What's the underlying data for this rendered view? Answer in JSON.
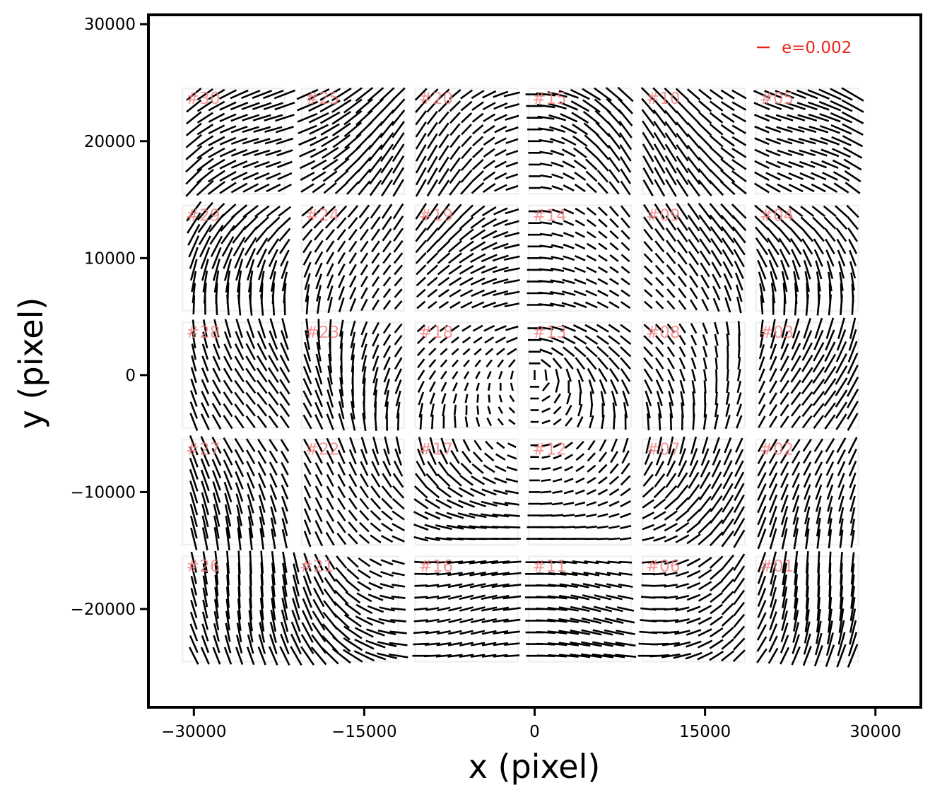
{
  "chart_data": {
    "type": "quiver",
    "title": "",
    "xlabel": "x (pixel)",
    "ylabel": "y (pixel)",
    "xlim": [
      -34000,
      34000
    ],
    "ylim": [
      -28400,
      30800
    ],
    "xticks": [
      -30000,
      -15000,
      0,
      15000,
      30000
    ],
    "xtick_labels": [
      "−30000",
      "−15000",
      "0",
      "15000",
      "30000"
    ],
    "yticks": [
      -20000,
      -10000,
      0,
      10000,
      20000,
      30000
    ],
    "ytick_labels": [
      "−20000",
      "−10000",
      "0",
      "10000",
      "20000",
      "30000"
    ],
    "scale_key": {
      "label": "e=0.002",
      "value": 0.002,
      "color": "#e8281e",
      "position": "top-right"
    },
    "whisker_color": "#000000",
    "ccd_label_color": "#f08080",
    "ccds": [
      {
        "id": "#01",
        "x": 24000,
        "y": -20000
      },
      {
        "id": "#02",
        "x": 24000,
        "y": -10000
      },
      {
        "id": "#03",
        "x": 24000,
        "y": 0
      },
      {
        "id": "#04",
        "x": 24000,
        "y": 10000
      },
      {
        "id": "#05",
        "x": 24000,
        "y": 20000
      },
      {
        "id": "#06",
        "x": 14000,
        "y": -20000
      },
      {
        "id": "#07",
        "x": 14000,
        "y": -10000
      },
      {
        "id": "#08",
        "x": 14000,
        "y": 0
      },
      {
        "id": "#09",
        "x": 14000,
        "y": 10000
      },
      {
        "id": "#10",
        "x": 14000,
        "y": 20000
      },
      {
        "id": "#11",
        "x": 4000,
        "y": -20000
      },
      {
        "id": "#12",
        "x": 4000,
        "y": -10000
      },
      {
        "id": "#13",
        "x": 4000,
        "y": 0
      },
      {
        "id": "#14",
        "x": 4000,
        "y": 10000
      },
      {
        "id": "#15",
        "x": 4000,
        "y": 20000
      },
      {
        "id": "#16",
        "x": -6000,
        "y": -20000
      },
      {
        "id": "#17",
        "x": -6000,
        "y": -10000
      },
      {
        "id": "#18",
        "x": -6000,
        "y": 0
      },
      {
        "id": "#19",
        "x": -6000,
        "y": 10000
      },
      {
        "id": "#20",
        "x": -6000,
        "y": 20000
      },
      {
        "id": "#21",
        "x": -16500,
        "y": -20000
      },
      {
        "id": "#22",
        "x": -16000,
        "y": -10000
      },
      {
        "id": "#23",
        "x": -16000,
        "y": 0
      },
      {
        "id": "#24",
        "x": -16000,
        "y": 10000
      },
      {
        "id": "#25",
        "x": -16000,
        "y": 20000
      },
      {
        "id": "#26",
        "x": -26500,
        "y": -20000
      },
      {
        "id": "#27",
        "x": -26500,
        "y": -10000
      },
      {
        "id": "#28",
        "x": -26500,
        "y": 0
      },
      {
        "id": "#29",
        "x": -26500,
        "y": 10000
      },
      {
        "id": "#30",
        "x": -26500,
        "y": 20000
      }
    ]
  }
}
